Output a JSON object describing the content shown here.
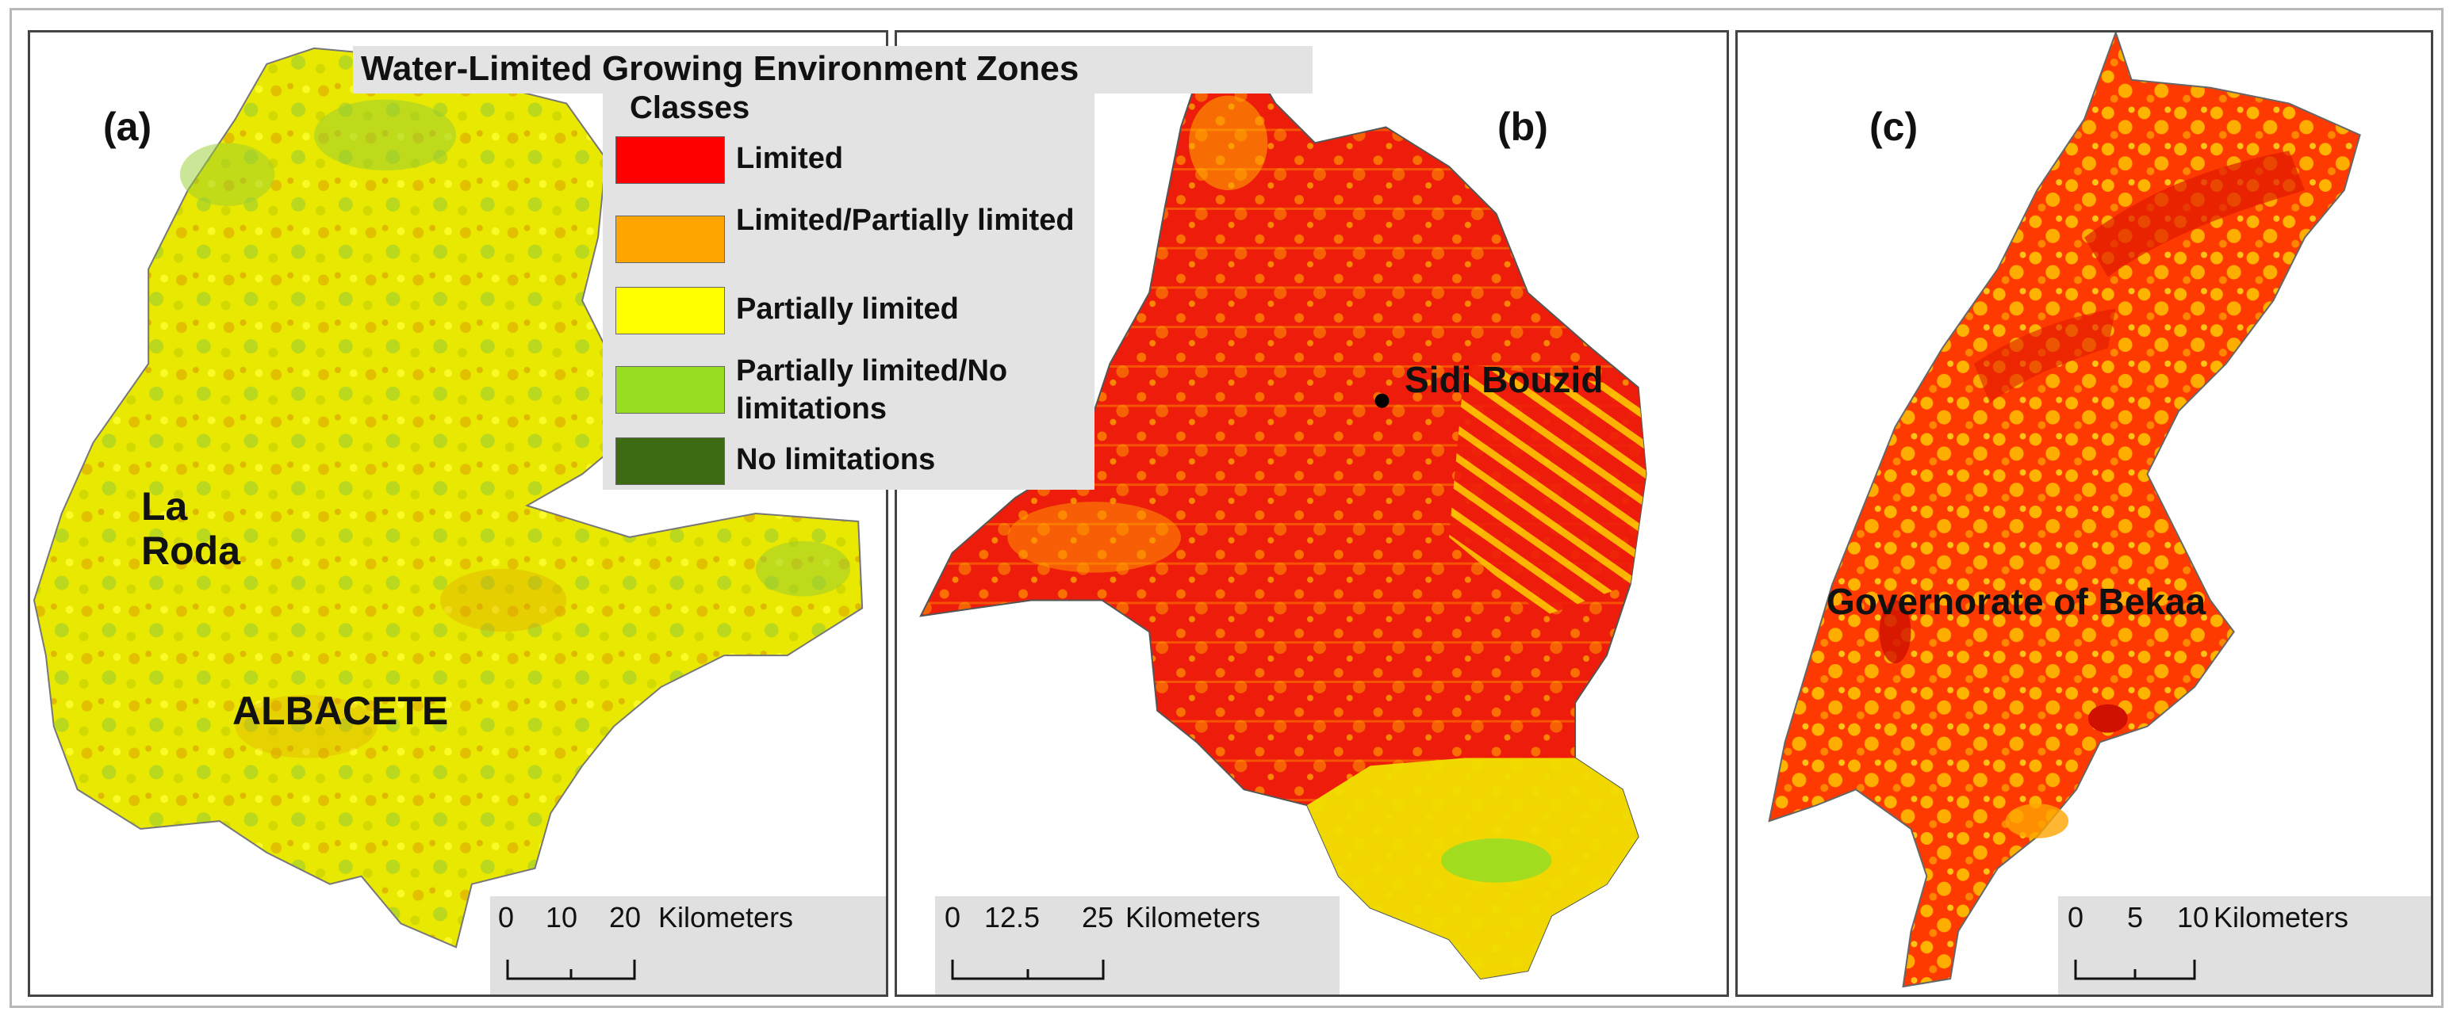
{
  "legend": {
    "title": "Water-Limited Growing Environment Zones",
    "subtitle": "Classes",
    "items": [
      {
        "label": "Limited",
        "color": "#ff0000"
      },
      {
        "label": "Limited/Partially limited",
        "color": "#ffa500"
      },
      {
        "label": "Partially limited",
        "color": "#ffff00"
      },
      {
        "label": "Partially limited/No limitations",
        "color": "#99dd22"
      },
      {
        "label": "No limitations",
        "color": "#3d6b14"
      }
    ]
  },
  "panels": {
    "a": {
      "letter": "(a)",
      "place_labels": {
        "town": "La Roda",
        "region": "ALBACETE"
      },
      "scale": {
        "ticks": [
          "0",
          "10",
          "20"
        ],
        "unit": "Kilometers"
      }
    },
    "b": {
      "letter": "(b)",
      "place_labels": {
        "city": "Sidi Bouzid"
      },
      "scale": {
        "ticks": [
          "0",
          "12.5",
          "25"
        ],
        "unit": "Kilometers"
      }
    },
    "c": {
      "letter": "(c)",
      "place_labels": {
        "region": "Governorate of Bekaa"
      },
      "scale": {
        "ticks": [
          "0",
          "5",
          "10"
        ],
        "unit": "Kilometers"
      }
    }
  }
}
